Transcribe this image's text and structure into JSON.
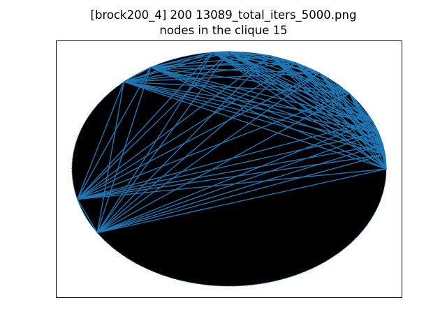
{
  "figure": {
    "title_line1": "[brock200_4] 200 13089_total_iters_5000.png",
    "title_line2": "nodes in the clique 15"
  },
  "chart_data": {
    "type": "graph",
    "layout": "circular",
    "graph_name": "brock200_4",
    "num_nodes": 200,
    "num_edges": 13089,
    "total_iters": 5000,
    "clique_size": 15,
    "background_edge_color": "#000000",
    "clique_edge_color": "#1f77b4",
    "node_marker_color": "#1f77b4",
    "axes_ticks": false,
    "clique_node_angles_deg": [
      90,
      96,
      120,
      132,
      195,
      213,
      0,
      7,
      12,
      18,
      24,
      40,
      55,
      65,
      75
    ]
  },
  "colors": {
    "clique_edge": "#1f77b4",
    "background_edges": "#000000"
  }
}
